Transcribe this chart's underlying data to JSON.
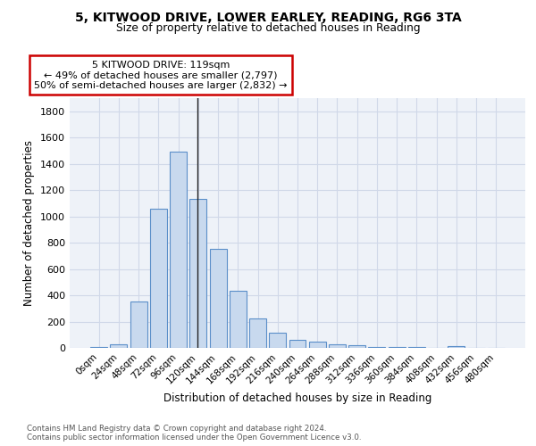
{
  "title_line1": "5, KITWOOD DRIVE, LOWER EARLEY, READING, RG6 3TA",
  "title_line2": "Size of property relative to detached houses in Reading",
  "xlabel": "Distribution of detached houses by size in Reading",
  "ylabel": "Number of detached properties",
  "bar_values": [
    10,
    30,
    355,
    1060,
    1490,
    1130,
    750,
    435,
    225,
    115,
    60,
    48,
    28,
    22,
    10,
    8,
    5,
    3,
    15,
    3,
    0
  ],
  "bar_labels": [
    "0sqm",
    "24sqm",
    "48sqm",
    "72sqm",
    "96sqm",
    "120sqm",
    "144sqm",
    "168sqm",
    "192sqm",
    "216sqm",
    "240sqm",
    "264sqm",
    "288sqm",
    "312sqm",
    "336sqm",
    "360sqm",
    "384sqm",
    "408sqm",
    "432sqm",
    "456sqm",
    "480sqm"
  ],
  "bar_color_fill": "#c8d9ee",
  "bar_color_edge": "#5b8fc9",
  "annotation_box_text": "5 KITWOOD DRIVE: 119sqm\n← 49% of detached houses are smaller (2,797)\n50% of semi-detached houses are larger (2,832) →",
  "annotation_box_color": "#ffffff",
  "annotation_box_edge": "#cc0000",
  "grid_color": "#d0d8e8",
  "bg_color": "#eef2f8",
  "footer_text": "Contains HM Land Registry data © Crown copyright and database right 2024.\nContains public sector information licensed under the Open Government Licence v3.0.",
  "ylim": [
    0,
    1900
  ],
  "yticks": [
    0,
    200,
    400,
    600,
    800,
    1000,
    1200,
    1400,
    1600,
    1800
  ]
}
